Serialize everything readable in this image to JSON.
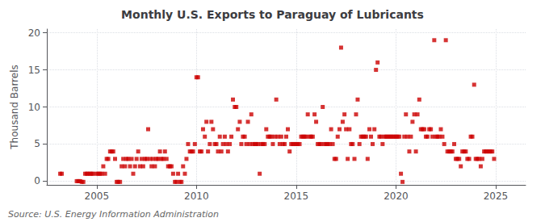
{
  "chart_data": {
    "type": "scatter",
    "title": "Monthly U.S. Exports to Paraguay of Lubricants",
    "ylabel": "Thousand Barrels",
    "annotations": [
      "Source: U.S. Energy Information Administration"
    ],
    "color": "#cc0000",
    "marker": "square",
    "grid": true,
    "xlim": [
      2002.5,
      2026.5
    ],
    "xticks": [
      2005,
      2010,
      2015,
      2020,
      2025
    ],
    "ylim": [
      -0.5,
      20.5
    ],
    "yticks": [
      0,
      5,
      10,
      15,
      20
    ],
    "x": [
      2003.17,
      2003.25,
      2004.0,
      2004.08,
      2004.17,
      2004.25,
      2004.33,
      2004.42,
      2004.5,
      2004.58,
      2004.67,
      2004.75,
      2004.83,
      2005.0,
      2005.08,
      2005.17,
      2005.25,
      2005.33,
      2005.42,
      2005.5,
      2005.58,
      2005.67,
      2005.75,
      2005.83,
      2005.92,
      2006.0,
      2006.08,
      2006.17,
      2006.25,
      2006.33,
      2006.42,
      2006.5,
      2006.58,
      2006.67,
      2006.75,
      2006.83,
      2006.92,
      2007.0,
      2007.08,
      2007.17,
      2007.25,
      2007.33,
      2007.42,
      2007.5,
      2007.58,
      2007.67,
      2007.75,
      2007.83,
      2007.92,
      2008.0,
      2008.08,
      2008.17,
      2008.25,
      2008.33,
      2008.42,
      2008.5,
      2008.58,
      2008.67,
      2008.75,
      2008.83,
      2008.92,
      2009.0,
      2009.08,
      2009.17,
      2009.25,
      2009.33,
      2009.42,
      2009.5,
      2009.58,
      2009.67,
      2009.75,
      2009.83,
      2009.92,
      2010.0,
      2010.08,
      2010.17,
      2010.25,
      2010.33,
      2010.42,
      2010.5,
      2010.58,
      2010.67,
      2010.75,
      2010.83,
      2010.92,
      2011.0,
      2011.08,
      2011.17,
      2011.25,
      2011.33,
      2011.42,
      2011.5,
      2011.58,
      2011.67,
      2011.75,
      2011.83,
      2011.92,
      2012.0,
      2012.08,
      2012.17,
      2012.25,
      2012.33,
      2012.42,
      2012.5,
      2012.58,
      2012.67,
      2012.75,
      2012.83,
      2012.92,
      2013.0,
      2013.08,
      2013.17,
      2013.25,
      2013.33,
      2013.42,
      2013.5,
      2013.58,
      2013.67,
      2013.75,
      2013.83,
      2013.92,
      2014.0,
      2014.08,
      2014.17,
      2014.25,
      2014.33,
      2014.42,
      2014.5,
      2014.58,
      2014.67,
      2014.75,
      2014.83,
      2014.92,
      2015.0,
      2015.08,
      2015.17,
      2015.25,
      2015.33,
      2015.42,
      2015.5,
      2015.58,
      2015.67,
      2015.75,
      2015.83,
      2015.92,
      2016.0,
      2016.08,
      2016.17,
      2016.25,
      2016.33,
      2016.42,
      2016.5,
      2016.58,
      2016.67,
      2016.75,
      2016.83,
      2016.92,
      2017.0,
      2017.08,
      2017.17,
      2017.25,
      2017.33,
      2017.42,
      2017.5,
      2017.58,
      2017.67,
      2017.75,
      2017.83,
      2017.92,
      2018.0,
      2018.08,
      2018.17,
      2018.25,
      2018.33,
      2018.42,
      2018.5,
      2018.58,
      2018.67,
      2018.75,
      2018.83,
      2018.92,
      2019.0,
      2019.08,
      2019.17,
      2019.25,
      2019.33,
      2019.42,
      2019.5,
      2019.58,
      2019.67,
      2019.75,
      2019.83,
      2019.92,
      2020.0,
      2020.08,
      2020.17,
      2020.25,
      2020.33,
      2020.42,
      2020.5,
      2020.58,
      2020.67,
      2020.75,
      2020.83,
      2020.92,
      2021.0,
      2021.08,
      2021.17,
      2021.25,
      2021.33,
      2021.42,
      2021.5,
      2021.58,
      2021.67,
      2021.75,
      2021.83,
      2021.92,
      2022.0,
      2022.08,
      2022.17,
      2022.25,
      2022.33,
      2022.42,
      2022.5,
      2022.58,
      2022.67,
      2022.75,
      2022.83,
      2022.92,
      2023.0,
      2023.08,
      2023.17,
      2023.25,
      2023.33,
      2023.42,
      2023.5,
      2023.58,
      2023.67,
      2023.75,
      2023.83,
      2023.92,
      2024.0,
      2024.08,
      2024.17,
      2024.25,
      2024.33,
      2024.42,
      2024.5,
      2024.58,
      2024.67,
      2024.75,
      2024.83,
      2024.92
    ],
    "values": [
      1,
      1,
      0,
      0,
      0,
      -0.1,
      -0.1,
      1,
      1,
      1,
      1,
      1,
      1,
      1,
      1,
      1,
      1,
      2,
      1,
      3,
      3,
      4,
      4,
      4,
      3,
      -0.1,
      -0.1,
      -0.1,
      2,
      3,
      2,
      3,
      3,
      2,
      3,
      1,
      2,
      3,
      4,
      2,
      3,
      2,
      3,
      3,
      7,
      3,
      2,
      3,
      2,
      3,
      3,
      4,
      3,
      3,
      4,
      3,
      2,
      2,
      2,
      1,
      -0.1,
      -0.1,
      1,
      -0.1,
      -0.1,
      2,
      1,
      3,
      5,
      4,
      4,
      4,
      5,
      14,
      14,
      4,
      4,
      7,
      6,
      8,
      4,
      5,
      8,
      7,
      5,
      5,
      4,
      6,
      4,
      5,
      6,
      5,
      4,
      5,
      6,
      11,
      10,
      10,
      7,
      8,
      5,
      6,
      6,
      5,
      8,
      5,
      9,
      5,
      5,
      5,
      5,
      1,
      5,
      5,
      5,
      7,
      6,
      6,
      6,
      5,
      6,
      11,
      6,
      5,
      6,
      5,
      5,
      6,
      7,
      4,
      5,
      5,
      5,
      5,
      5,
      5,
      6,
      6,
      6,
      6,
      9,
      6,
      6,
      6,
      9,
      8,
      5,
      5,
      5,
      10,
      5,
      5,
      5,
      5,
      7,
      5,
      3,
      3,
      6,
      7,
      18,
      8,
      9,
      7,
      3,
      7,
      5,
      5,
      3,
      9,
      11,
      5,
      6,
      6,
      6,
      6,
      3,
      7,
      6,
      5,
      7,
      15,
      16,
      6,
      6,
      5,
      6,
      6,
      6,
      6,
      6,
      6,
      6,
      6,
      6,
      6,
      1,
      -0.1,
      6,
      9,
      6,
      4,
      6,
      8,
      9,
      4,
      9,
      11,
      7,
      7,
      7,
      6,
      6,
      7,
      7,
      6,
      19,
      6,
      6,
      6,
      7,
      6,
      5,
      19,
      4,
      4,
      4,
      4,
      5,
      3,
      3,
      3,
      2,
      4,
      4,
      4,
      3,
      3,
      6,
      6,
      13,
      3,
      3,
      3,
      2,
      3,
      4,
      4,
      4,
      4,
      4,
      4,
      3
    ]
  }
}
